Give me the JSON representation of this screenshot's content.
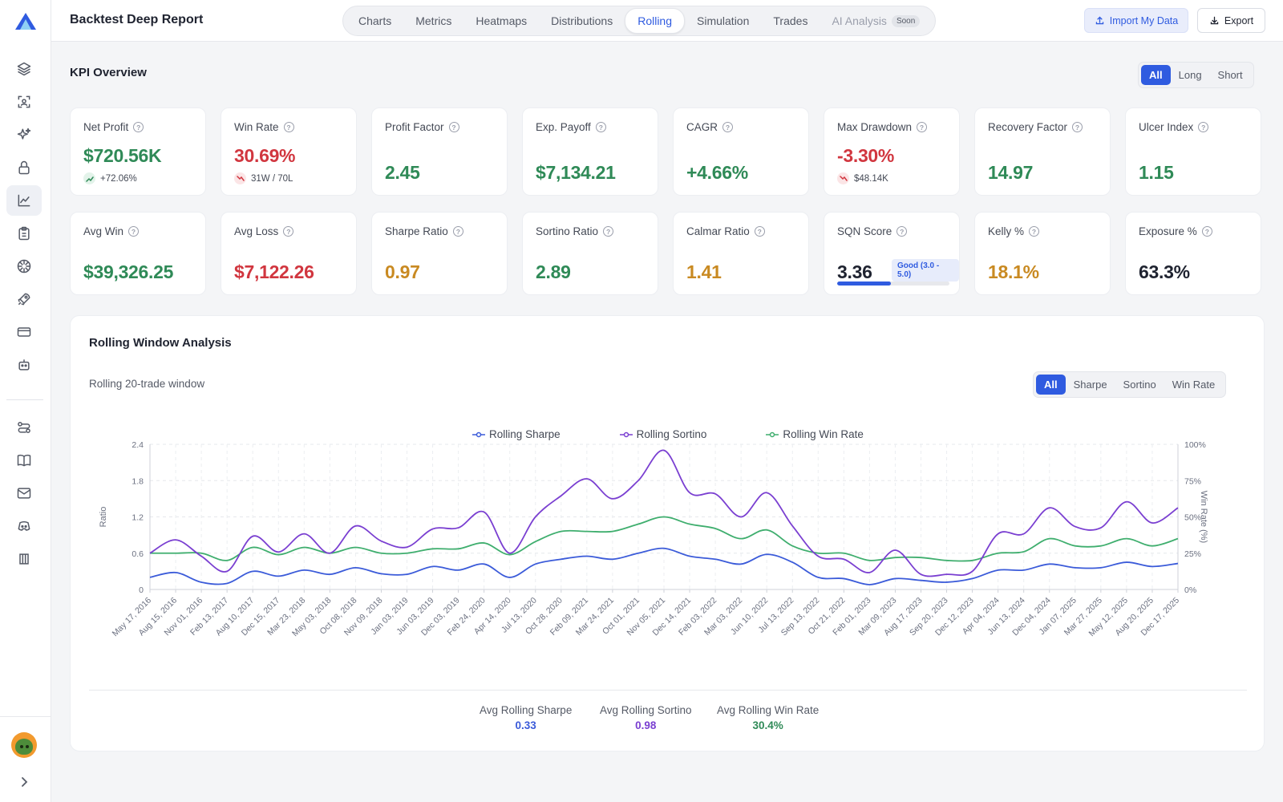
{
  "header": {
    "title": "Backtest Deep Report",
    "tabs": [
      {
        "label": "Charts"
      },
      {
        "label": "Metrics"
      },
      {
        "label": "Heatmaps"
      },
      {
        "label": "Distributions"
      },
      {
        "label": "Rolling"
      },
      {
        "label": "Simulation"
      },
      {
        "label": "Trades"
      },
      {
        "label": "AI Analysis",
        "badge": "Soon"
      }
    ],
    "active_tab": "Rolling",
    "import_label": "Import My Data",
    "export_label": "Export"
  },
  "sidebar": {
    "icons": [
      "layers-icon",
      "scan-icon",
      "sparkles-icon",
      "lock-icon",
      "line-chart-icon",
      "clipboard-icon",
      "aperture-icon",
      "rocket-icon",
      "credit-card-icon",
      "bot-icon",
      "workflow-icon",
      "book-icon",
      "mail-icon",
      "discord-icon",
      "ticket-icon"
    ],
    "active": "line-chart-icon"
  },
  "kpi": {
    "title": "KPI Overview",
    "filter": [
      "All",
      "Long",
      "Short"
    ],
    "filter_active": "All",
    "row1": [
      {
        "label": "Net Profit",
        "value": "$720.56K",
        "color": "green",
        "sub": "+72.06%",
        "sub_trend": "up"
      },
      {
        "label": "Win Rate",
        "value": "30.69%",
        "color": "red",
        "sub": "31W / 70L",
        "sub_trend": "down"
      },
      {
        "label": "Profit Factor",
        "value": "2.45",
        "color": "green"
      },
      {
        "label": "Exp. Payoff",
        "value": "$7,134.21",
        "color": "green"
      },
      {
        "label": "CAGR",
        "value": "+4.66%",
        "color": "green"
      },
      {
        "label": "Max Drawdown",
        "value": "-3.30%",
        "color": "red",
        "sub": "$48.14K",
        "sub_trend": "down"
      },
      {
        "label": "Recovery Factor",
        "value": "14.97",
        "color": "green"
      },
      {
        "label": "Ulcer Index",
        "value": "1.15",
        "color": "green"
      }
    ],
    "row2": [
      {
        "label": "Avg Win",
        "value": "$39,326.25",
        "color": "green"
      },
      {
        "label": "Avg Loss",
        "value": "$7,122.26",
        "color": "red"
      },
      {
        "label": "Sharpe Ratio",
        "value": "0.97",
        "color": "amber"
      },
      {
        "label": "Sortino Ratio",
        "value": "2.89",
        "color": "green"
      },
      {
        "label": "Calmar Ratio",
        "value": "1.41",
        "color": "amber"
      },
      {
        "label": "SQN Score",
        "value": "3.36",
        "color": "dark",
        "badge": "Good (3.0 - 5.0)",
        "progress": 0.48
      },
      {
        "label": "Kelly %",
        "value": "18.1%",
        "color": "amber"
      },
      {
        "label": "Exposure %",
        "value": "63.3%",
        "color": "dark"
      }
    ]
  },
  "rolling": {
    "title": "Rolling Window Analysis",
    "subtitle": "Rolling 20-trade window",
    "filter": [
      "All",
      "Sharpe",
      "Sortino",
      "Win Rate"
    ],
    "filter_active": "All",
    "summary": [
      {
        "label": "Avg Rolling Sharpe",
        "value": "0.33",
        "color": "#3b5bd9"
      },
      {
        "label": "Avg Rolling Sortino",
        "value": "0.98",
        "color": "#7a3fd1"
      },
      {
        "label": "Avg Rolling Win Rate",
        "value": "30.4%",
        "color": "#2f8a57"
      }
    ]
  },
  "chart_data": {
    "type": "line",
    "ylabel": "Ratio",
    "y2label": "Win Rate (%)",
    "ylim": [
      0,
      2.4
    ],
    "y2lim": [
      0,
      100
    ],
    "yticks": [
      "0",
      "0.6",
      "1.2",
      "1.8",
      "2.4"
    ],
    "y2ticks": [
      "0%",
      "25%",
      "50%",
      "75%",
      "100%"
    ],
    "grid": true,
    "legend_position": "top-center",
    "colors": {
      "sharpe": "#3b5bd9",
      "sortino": "#7a3fd1",
      "winrate": "#3fae6e"
    },
    "x": [
      "May 17, 2016",
      "Aug 15, 2016",
      "Nov 01, 2016",
      "Feb 13, 2017",
      "Aug 10, 2017",
      "Dec 15, 2017",
      "Mar 23, 2018",
      "May 03, 2018",
      "Oct 08, 2018",
      "Nov 09, 2018",
      "Jan 03, 2019",
      "Jun 03, 2019",
      "Dec 03, 2019",
      "Feb 24, 2020",
      "Apr 14, 2020",
      "Jul 13, 2020",
      "Oct 28, 2020",
      "Feb 09, 2021",
      "Mar 24, 2021",
      "Oct 01, 2021",
      "Nov 05, 2021",
      "Dec 14, 2021",
      "Feb 03, 2022",
      "Mar 03, 2022",
      "Jun 10, 2022",
      "Jul 13, 2022",
      "Sep 13, 2022",
      "Oct 21, 2022",
      "Feb 01, 2023",
      "Mar 09, 2023",
      "Aug 17, 2023",
      "Sep 20, 2023",
      "Dec 12, 2023",
      "Apr 04, 2024",
      "Jun 13, 2024",
      "Dec 04, 2024",
      "Jan 07, 2025",
      "Mar 27, 2025",
      "May 12, 2025",
      "Aug 20, 2025",
      "Dec 17, 2025"
    ],
    "series": [
      {
        "name": "Rolling Sharpe",
        "axis": "left",
        "values": [
          0.2,
          0.28,
          0.12,
          0.1,
          0.3,
          0.22,
          0.32,
          0.25,
          0.36,
          0.26,
          0.25,
          0.38,
          0.32,
          0.42,
          0.2,
          0.42,
          0.5,
          0.55,
          0.5,
          0.6,
          0.68,
          0.55,
          0.5,
          0.42,
          0.58,
          0.45,
          0.2,
          0.18,
          0.08,
          0.18,
          0.15,
          0.12,
          0.18,
          0.32,
          0.32,
          0.42,
          0.36,
          0.36,
          0.45,
          0.38,
          0.43
        ]
      },
      {
        "name": "Rolling Sortino",
        "axis": "left",
        "values": [
          0.6,
          0.82,
          0.55,
          0.3,
          0.88,
          0.62,
          0.92,
          0.6,
          1.05,
          0.8,
          0.7,
          1.0,
          1.02,
          1.28,
          0.6,
          1.2,
          1.55,
          1.83,
          1.5,
          1.8,
          2.3,
          1.6,
          1.58,
          1.2,
          1.6,
          1.05,
          0.55,
          0.5,
          0.28,
          0.65,
          0.25,
          0.25,
          0.3,
          0.92,
          0.92,
          1.35,
          1.04,
          1.02,
          1.45,
          1.1,
          1.35
        ]
      },
      {
        "name": "Rolling Win Rate",
        "axis": "right",
        "values": [
          25,
          25,
          25,
          20,
          29,
          24,
          29,
          25,
          29,
          25,
          25,
          28,
          28,
          32,
          24,
          33,
          40,
          40,
          40,
          45,
          50,
          45,
          42,
          35,
          41,
          30,
          25,
          25,
          20,
          22,
          22,
          20,
          20,
          25,
          26,
          35,
          30,
          30,
          35,
          30,
          35
        ]
      }
    ]
  }
}
